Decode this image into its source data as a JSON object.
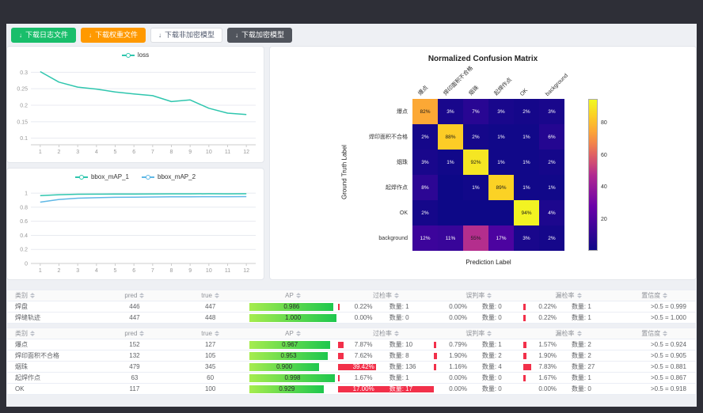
{
  "toolbar": {
    "buttons": [
      {
        "label": "下载日志文件",
        "variant": "green",
        "icon": "download-icon"
      },
      {
        "label": "下载权重文件",
        "variant": "orange",
        "icon": "download-icon"
      },
      {
        "label": "下载非加密模型",
        "variant": "ghost",
        "icon": "download-icon"
      },
      {
        "label": "下载加密模型",
        "variant": "dark",
        "icon": "download-icon"
      }
    ]
  },
  "chart_data": [
    {
      "type": "line",
      "title": "loss",
      "x": [
        1,
        2,
        3,
        4,
        5,
        6,
        7,
        8,
        9,
        10,
        11,
        12
      ],
      "xlabel": "",
      "ylabel": "",
      "yticks": [
        0.1,
        0.15,
        0.2,
        0.25,
        0.3
      ],
      "ylim": [
        0.08,
        0.32
      ],
      "grid": true,
      "legend_position": "top",
      "series": [
        {
          "name": "loss",
          "color": "#2fc6ae",
          "values": [
            0.302,
            0.27,
            0.255,
            0.249,
            0.24,
            0.234,
            0.229,
            0.211,
            0.216,
            0.191,
            0.176,
            0.172
          ]
        }
      ]
    },
    {
      "type": "line",
      "title": "bbox_mAP",
      "x": [
        1,
        2,
        3,
        4,
        5,
        6,
        7,
        8,
        9,
        10,
        11,
        12
      ],
      "xlabel": "",
      "ylabel": "",
      "yticks": [
        0,
        0.2,
        0.4,
        0.6,
        0.8,
        1
      ],
      "ylim": [
        0,
        1.08
      ],
      "grid": true,
      "legend_position": "top",
      "series": [
        {
          "name": "bbox_mAP_1",
          "color": "#2fc6ae",
          "values": [
            0.965,
            0.978,
            0.984,
            0.986,
            0.988,
            0.988,
            0.989,
            0.99,
            0.99,
            0.991,
            0.99,
            0.991
          ]
        },
        {
          "name": "bbox_mAP_2",
          "color": "#5fb8e6",
          "values": [
            0.872,
            0.91,
            0.928,
            0.935,
            0.94,
            0.943,
            0.945,
            0.947,
            0.948,
            0.95,
            0.95,
            0.951
          ]
        }
      ]
    },
    {
      "type": "heatmap",
      "title": "Normalized Confusion Matrix",
      "xlabel": "Prediction Label",
      "ylabel": "Ground Truth Label",
      "labels": [
        "爆点",
        "焊印面积不合格",
        "烟珠",
        "起焊作点",
        "OK",
        "background"
      ],
      "matrix": [
        [
          82,
          3,
          7,
          3,
          2,
          3
        ],
        [
          2,
          88,
          2,
          1,
          1,
          6
        ],
        [
          3,
          1,
          92,
          1,
          1,
          2
        ],
        [
          8,
          0,
          1,
          89,
          1,
          1
        ],
        [
          2,
          0,
          0,
          0,
          94,
          4
        ],
        [
          12,
          11,
          55,
          17,
          3,
          2
        ]
      ],
      "unit": "%",
      "colorbar_ticks": [
        20,
        40,
        60,
        80
      ],
      "vmax": 95,
      "colormap": "plasma"
    }
  ],
  "tables": [
    {
      "headers": [
        "类别",
        "pred",
        "true",
        "AP",
        "过检率",
        "误判率",
        "漏检率",
        "置信度"
      ],
      "rows": [
        {
          "label": "焊盘",
          "pred": "446",
          "true": "447",
          "ap": "0.986",
          "ap_bar": 97,
          "guo": {
            "rate": "0.22%",
            "count": "数量: 1",
            "bar": 2
          },
          "wu": {
            "rate": "0.00%",
            "count": "数量: 0",
            "bar": 0
          },
          "lou": {
            "rate": "0.22%",
            "count": "数量: 1",
            "bar": 2
          },
          "conf": ">0.5 = 0.999"
        },
        {
          "label": "焊缝轨迹",
          "pred": "447",
          "true": "448",
          "ap": "1.000",
          "ap_bar": 100,
          "guo": {
            "rate": "0.00%",
            "count": "数量: 0",
            "bar": 0
          },
          "wu": {
            "rate": "0.00%",
            "count": "数量: 0",
            "bar": 0
          },
          "lou": {
            "rate": "0.22%",
            "count": "数量: 1",
            "bar": 2
          },
          "conf": ">0.5 = 1.000"
        }
      ]
    },
    {
      "headers": [
        "类别",
        "pred",
        "true",
        "AP",
        "过检率",
        "误判率",
        "漏检率",
        "置信度"
      ],
      "rows": [
        {
          "label": "爆点",
          "pred": "152",
          "true": "127",
          "ap": "0.967",
          "ap_bar": 93,
          "guo": {
            "rate": "7.87%",
            "count": "数量: 10",
            "bar": 6
          },
          "wu": {
            "rate": "0.79%",
            "count": "数量: 1",
            "bar": 2
          },
          "lou": {
            "rate": "1.57%",
            "count": "数量: 2",
            "bar": 3
          },
          "conf": ">0.5 = 0.924"
        },
        {
          "label": "焊印面积不合格",
          "pred": "132",
          "true": "105",
          "ap": "0.953",
          "ap_bar": 90,
          "guo": {
            "rate": "7.62%",
            "count": "数量: 8",
            "bar": 6
          },
          "wu": {
            "rate": "1.90%",
            "count": "数量: 2",
            "bar": 3
          },
          "lou": {
            "rate": "1.90%",
            "count": "数量: 2",
            "bar": 3
          },
          "conf": ">0.5 = 0.905"
        },
        {
          "label": "烟珠",
          "pred": "479",
          "true": "345",
          "ap": "0.900",
          "ap_bar": 80,
          "guo": {
            "rate": "39.42%",
            "count": "数量: 136",
            "bar": 40
          },
          "wu": {
            "rate": "1.16%",
            "count": "数量: 4",
            "bar": 2
          },
          "lou": {
            "rate": "7.83%",
            "count": "数量: 27",
            "bar": 8
          },
          "conf": ">0.5 = 0.881"
        },
        {
          "label": "起焊作点",
          "pred": "63",
          "true": "60",
          "ap": "0.998",
          "ap_bar": 99,
          "guo": {
            "rate": "1.67%",
            "count": "数量: 1",
            "bar": 2
          },
          "wu": {
            "rate": "0.00%",
            "count": "数量: 0",
            "bar": 0
          },
          "lou": {
            "rate": "1.67%",
            "count": "数量: 1",
            "bar": 2
          },
          "conf": ">0.5 = 0.867"
        },
        {
          "label": "OK",
          "pred": "117",
          "true": "100",
          "ap": "0.929",
          "ap_bar": 86,
          "guo": {
            "rate": "17.00%",
            "count": "数量: 17",
            "bar": 100
          },
          "wu": {
            "rate": "0.00%",
            "count": "数量: 0",
            "bar": 0
          },
          "lou": {
            "rate": "0.00%",
            "count": "数量: 0",
            "bar": 0
          },
          "conf": ">0.5 = 0.918"
        }
      ]
    }
  ]
}
